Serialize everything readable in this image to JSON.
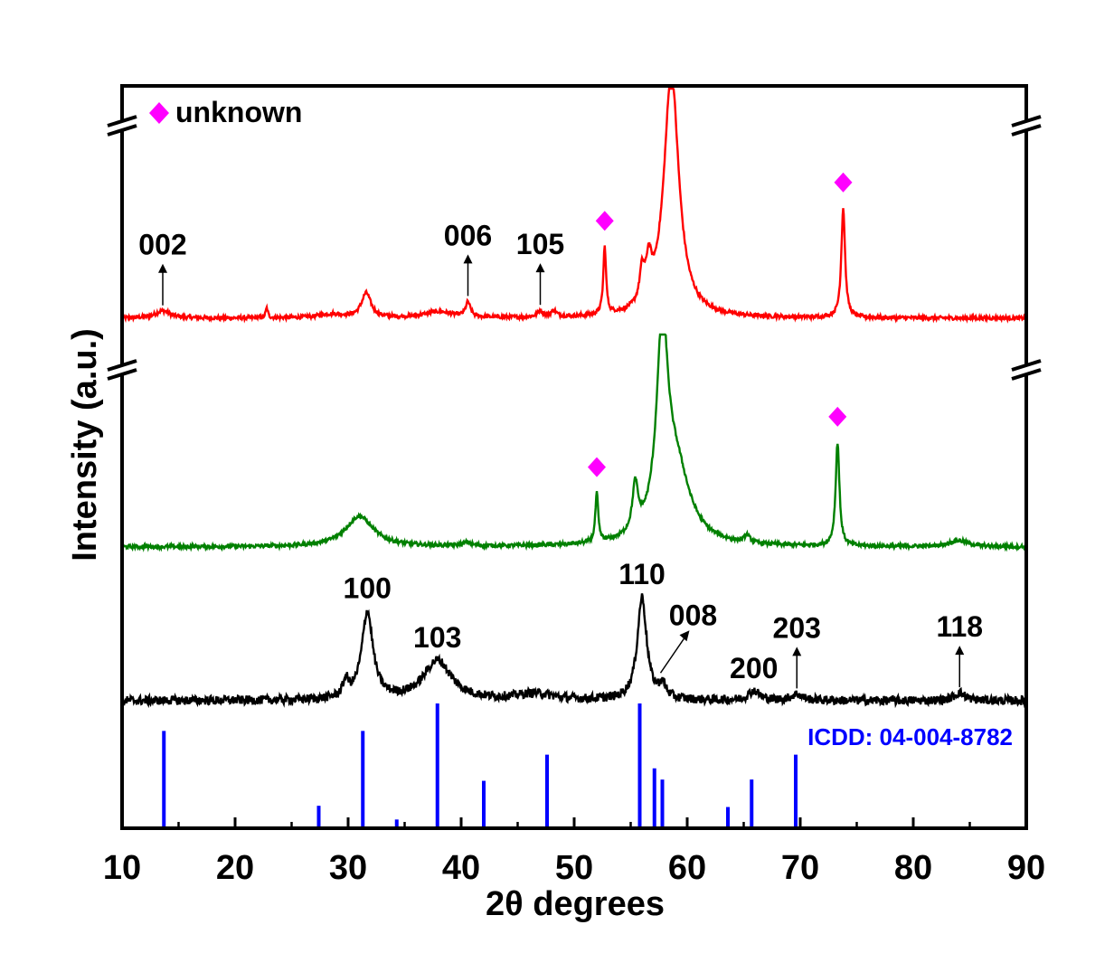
{
  "chart_data": {
    "type": "line",
    "xlabel": "2θ degrees",
    "ylabel": "Intensity (a.u.)",
    "xlim": [
      10,
      90
    ],
    "x_ticks": [
      "10",
      "20",
      "30",
      "40",
      "50",
      "60",
      "70",
      "80",
      "90"
    ],
    "y_axis_breaks": true,
    "colors": {
      "top": "#ff0000",
      "middle": "#008000",
      "bottom": "#000000",
      "reference": "#0000ff",
      "marker": "#ff00ff"
    },
    "legend": {
      "marker": "diamond",
      "label": "unknown",
      "position": "top-left"
    },
    "series": [
      {
        "id": "top",
        "baseline": 0,
        "noise": 1.5,
        "peaks": [
          [
            13.6,
            6,
            0.8
          ],
          [
            22.8,
            8,
            0.12
          ],
          [
            28.5,
            3,
            1.5
          ],
          [
            31.6,
            20,
            0.5
          ],
          [
            38.0,
            5,
            1.5
          ],
          [
            40.6,
            12,
            0.25
          ],
          [
            47.0,
            5,
            0.3
          ],
          [
            48.2,
            5,
            0.3
          ],
          [
            52.7,
            55,
            0.15
          ],
          [
            56.0,
            25,
            0.25
          ],
          [
            56.6,
            30,
            0.3
          ],
          [
            58.6,
            200,
            0.8
          ],
          [
            73.8,
            90,
            0.2
          ]
        ]
      },
      {
        "id": "middle",
        "baseline": 0,
        "noise": 1.5,
        "peaks": [
          [
            31.0,
            25,
            1.5
          ],
          [
            40.5,
            3,
            0.4
          ],
          [
            52.0,
            40,
            0.15
          ],
          [
            55.4,
            38,
            0.3
          ],
          [
            57.8,
            160,
            0.6
          ],
          [
            59.0,
            60,
            1.5
          ],
          [
            65.3,
            6,
            0.3
          ],
          [
            73.3,
            85,
            0.2
          ],
          [
            84.0,
            5,
            1.0
          ]
        ]
      },
      {
        "id": "bottom",
        "baseline": 0,
        "noise": 2.8,
        "peaks": [
          [
            29.8,
            10,
            0.3
          ],
          [
            31.7,
            55,
            0.6
          ],
          [
            37.9,
            25,
            1.5
          ],
          [
            46.5,
            4,
            2.0
          ],
          [
            56.0,
            65,
            0.5
          ],
          [
            57.8,
            8,
            0.4
          ],
          [
            65.9,
            6,
            0.6
          ],
          [
            69.7,
            4,
            0.6
          ],
          [
            84.1,
            5,
            0.6
          ]
        ]
      }
    ],
    "reference": {
      "label": "ICDD: 04-004-8782",
      "lines": [
        {
          "x": 13.7,
          "intensity": 78
        },
        {
          "x": 27.4,
          "intensity": 18
        },
        {
          "x": 31.3,
          "intensity": 78
        },
        {
          "x": 34.3,
          "intensity": 7
        },
        {
          "x": 37.9,
          "intensity": 100
        },
        {
          "x": 42.0,
          "intensity": 38
        },
        {
          "x": 47.6,
          "intensity": 59
        },
        {
          "x": 55.8,
          "intensity": 100
        },
        {
          "x": 57.1,
          "intensity": 48
        },
        {
          "x": 57.8,
          "intensity": 39
        },
        {
          "x": 63.6,
          "intensity": 17
        },
        {
          "x": 65.7,
          "intensity": 39
        },
        {
          "x": 69.6,
          "intensity": 59
        }
      ]
    },
    "annotations": [
      {
        "text": "002",
        "series": "top",
        "x": 13.6,
        "arrow": true
      },
      {
        "text": "006",
        "series": "top",
        "x": 40.6,
        "arrow": true
      },
      {
        "text": "105",
        "series": "top",
        "x": 47.0,
        "arrow": true
      },
      {
        "text": "100",
        "series": "bottom",
        "x": 31.7,
        "arrow": false
      },
      {
        "text": "103",
        "series": "bottom",
        "x": 37.9,
        "arrow": false
      },
      {
        "text": "110",
        "series": "bottom",
        "x": 56.0,
        "arrow": false
      },
      {
        "text": "008",
        "series": "bottom",
        "x": 57.8,
        "arrow": "diagonal"
      },
      {
        "text": "200",
        "series": "bottom",
        "x": 65.9,
        "arrow": false
      },
      {
        "text": "203",
        "series": "bottom",
        "x": 69.7,
        "arrow": true
      },
      {
        "text": "118",
        "series": "bottom",
        "x": 84.1,
        "arrow": true
      }
    ],
    "markers": [
      {
        "series": "top",
        "x": 52.7,
        "symbol": "diamond"
      },
      {
        "series": "top",
        "x": 73.8,
        "symbol": "diamond"
      },
      {
        "series": "middle",
        "x": 52.0,
        "symbol": "diamond"
      },
      {
        "series": "middle",
        "x": 73.3,
        "symbol": "diamond"
      }
    ]
  }
}
